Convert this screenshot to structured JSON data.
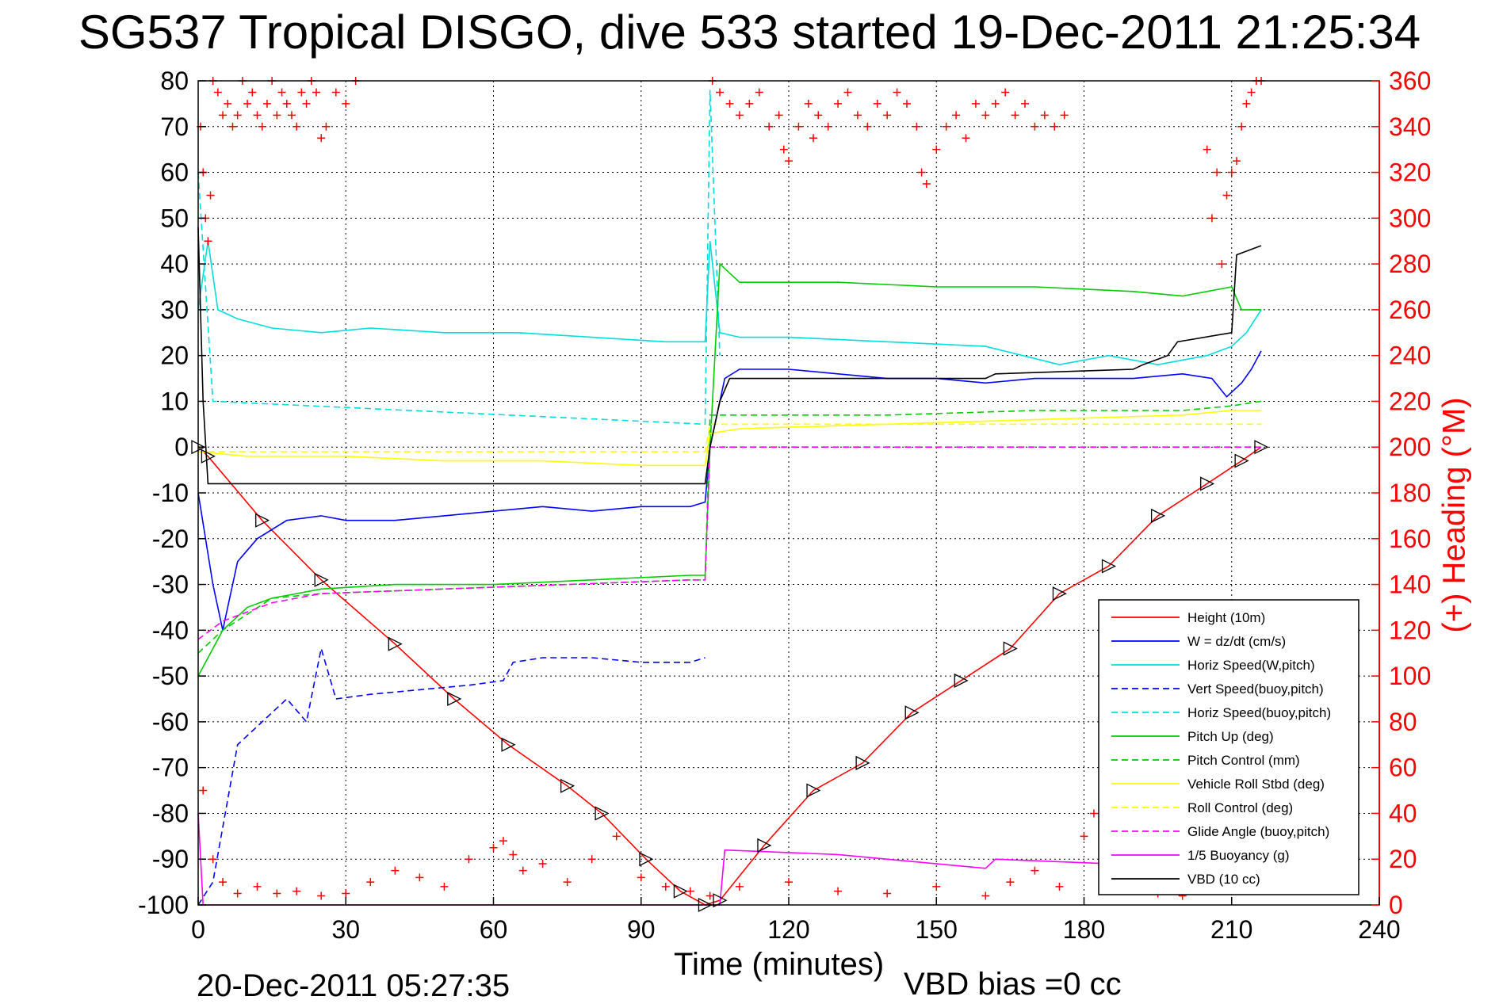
{
  "chart_data": {
    "type": "line",
    "title": "SG537 Tropical DISGO, dive 533 started 19-Dec-2011 21:25:34",
    "xlabel": "Time (minutes)",
    "ylabel": "",
    "y2label": "(+) Heading (°M)",
    "xlim": [
      0,
      240
    ],
    "ylim": [
      -100,
      80
    ],
    "y2lim": [
      0,
      360
    ],
    "xticks": [
      0,
      30,
      60,
      90,
      120,
      150,
      180,
      210,
      240
    ],
    "yticks": [
      -100,
      -90,
      -80,
      -70,
      -60,
      -50,
      -40,
      -30,
      -20,
      -10,
      0,
      10,
      20,
      30,
      40,
      50,
      60,
      70,
      80
    ],
    "y2ticks": [
      0,
      20,
      40,
      60,
      80,
      100,
      120,
      140,
      160,
      180,
      200,
      220,
      240,
      260,
      280,
      300,
      320,
      340,
      360
    ],
    "grid": true,
    "legend_position": "lower-right",
    "series": [
      {
        "name": "Height (10m)",
        "color": "#ff0000",
        "style": "solid",
        "x": [
          0,
          2,
          13,
          25,
          40,
          52,
          63,
          75,
          82,
          91,
          98,
          103,
          106,
          115,
          125,
          135,
          145,
          155,
          165,
          175,
          185,
          195,
          205,
          212,
          216
        ],
        "y": [
          0,
          -2,
          -16,
          -29,
          -43,
          -55,
          -65,
          -74,
          -80,
          -90,
          -97,
          -100,
          -99,
          -87,
          -75,
          -69,
          -58,
          -51,
          -44,
          -32,
          -26,
          -15,
          -8,
          -3,
          0
        ]
      },
      {
        "name": "W = dz/dt (cm/s)",
        "color": "#0000ff",
        "style": "solid",
        "x": [
          0,
          3,
          5,
          8,
          12,
          18,
          25,
          30,
          40,
          50,
          60,
          70,
          80,
          90,
          100,
          103,
          104,
          107,
          110,
          120,
          130,
          140,
          150,
          160,
          170,
          180,
          190,
          200,
          206,
          209,
          212,
          214,
          216
        ],
        "y": [
          -10,
          -30,
          -40,
          -25,
          -20,
          -16,
          -15,
          -16,
          -16,
          -15,
          -14,
          -13,
          -14,
          -13,
          -13,
          -12,
          0,
          15,
          17,
          17,
          16,
          15,
          15,
          14,
          15,
          15,
          15,
          16,
          15,
          11,
          14,
          17,
          21
        ]
      },
      {
        "name": "Horiz Speed(W,pitch)",
        "color": "#00dddd",
        "style": "solid",
        "x": [
          0,
          2,
          4,
          8,
          15,
          25,
          35,
          50,
          65,
          80,
          95,
          103,
          104,
          106,
          110,
          120,
          140,
          160,
          175,
          185,
          195,
          205,
          210,
          213,
          216
        ],
        "y": [
          30,
          45,
          30,
          28,
          26,
          25,
          26,
          25,
          25,
          24,
          23,
          23,
          45,
          25,
          24,
          24,
          23,
          22,
          18,
          20,
          18,
          20,
          22,
          25,
          30
        ]
      },
      {
        "name": "Vert Speed(buoy,pitch)",
        "color": "#0000ff",
        "style": "dashed",
        "x": [
          0,
          3,
          8,
          13,
          18,
          22,
          25,
          28,
          35,
          45,
          55,
          62,
          64,
          70,
          80,
          90,
          100,
          103
        ],
        "y": [
          -100,
          -95,
          -65,
          -60,
          -55,
          -60,
          -44,
          -55,
          -54,
          -53,
          -52,
          -51,
          -47,
          -46,
          -46,
          -47,
          -47,
          -46
        ]
      },
      {
        "name": "Horiz Speed(buoy,pitch)",
        "color": "#00dddd",
        "style": "dashed",
        "x": [
          0,
          3,
          103,
          104,
          106
        ],
        "y": [
          60,
          10,
          5,
          78,
          20
        ]
      },
      {
        "name": "Pitch Up (deg)",
        "color": "#00cc00",
        "style": "solid",
        "x": [
          0,
          5,
          10,
          15,
          25,
          40,
          60,
          80,
          100,
          103,
          104,
          106,
          110,
          130,
          150,
          170,
          190,
          200,
          205,
          210,
          212,
          216
        ],
        "y": [
          -50,
          -40,
          -35,
          -33,
          -31,
          -30,
          -30,
          -29,
          -28,
          -28,
          0,
          40,
          36,
          36,
          35,
          35,
          34,
          33,
          34,
          35,
          30,
          30
        ]
      },
      {
        "name": "Pitch Control (mm)",
        "color": "#00cc00",
        "style": "dashed",
        "x": [
          0,
          5,
          15,
          25,
          50,
          75,
          100,
          103,
          104,
          110,
          140,
          170,
          200,
          210,
          216
        ],
        "y": [
          -45,
          -40,
          -33,
          -32,
          -31,
          -30,
          -29,
          -29,
          7,
          7,
          7,
          8,
          8,
          9,
          10
        ]
      },
      {
        "name": "Vehicle Roll Stbd (deg)",
        "color": "#ffff00",
        "style": "solid",
        "x": [
          0,
          10,
          30,
          50,
          70,
          90,
          103,
          104,
          110,
          140,
          170,
          200,
          210,
          216
        ],
        "y": [
          -1,
          -2,
          -2,
          -3,
          -3,
          -4,
          -4,
          3,
          4,
          5,
          6,
          7,
          8,
          8
        ]
      },
      {
        "name": "Roll Control (deg)",
        "color": "#ffff00",
        "style": "dashed",
        "x": [
          0,
          103,
          104,
          216
        ],
        "y": [
          -1,
          -1,
          5,
          5
        ]
      },
      {
        "name": "Glide Angle (buoy,pitch)",
        "color": "#ff00ff",
        "style": "dashed",
        "x": [
          0,
          5,
          15,
          25,
          50,
          75,
          100,
          103,
          104,
          216
        ],
        "y": [
          -42,
          -38,
          -34,
          -32,
          -31,
          -30,
          -29,
          -29,
          0,
          0
        ]
      },
      {
        "name": "1/5 Buoyancy (g)",
        "color": "#ff00ff",
        "style": "solid",
        "x": [
          0,
          1,
          106,
          107,
          130,
          160,
          162,
          185,
          200,
          205
        ],
        "y": [
          -80,
          -100,
          -100,
          -88,
          -89,
          -92,
          -90,
          -91,
          -92,
          -95
        ]
      },
      {
        "name": "VBD (10 cc)",
        "color": "#000000",
        "style": "solid",
        "x": [
          0,
          1,
          2,
          103,
          104,
          106,
          108,
          160,
          162,
          190,
          192,
          197,
          199,
          210,
          211,
          216
        ],
        "y": [
          48,
          10,
          -8,
          -8,
          0,
          10,
          15,
          15,
          16,
          17,
          18,
          20,
          23,
          25,
          42,
          44
        ]
      }
    ],
    "heading_points": {
      "name": "(+) Heading",
      "color": "#ff0000",
      "axis": "right",
      "x": [
        0.5,
        1,
        1.5,
        2,
        2.5,
        3,
        4,
        5,
        6,
        7,
        8,
        9,
        10,
        11,
        12,
        13,
        14,
        15,
        16,
        17,
        18,
        19,
        20,
        21,
        22,
        23,
        24,
        25,
        26,
        28,
        30,
        32,
        104.5,
        106,
        108,
        110,
        112,
        114,
        116,
        118,
        119,
        120,
        122,
        124,
        125,
        126,
        128,
        130,
        132,
        134,
        136,
        138,
        140,
        142,
        144,
        146,
        147,
        148,
        150,
        152,
        154,
        156,
        158,
        160,
        162,
        164,
        166,
        168,
        170,
        172,
        174,
        176,
        205,
        206,
        207,
        208,
        209,
        210,
        211,
        212,
        213,
        214,
        215,
        216,
        1,
        3,
        5,
        8,
        12,
        16,
        20,
        25,
        30,
        35,
        40,
        45,
        50,
        55,
        60,
        62,
        64,
        66,
        70,
        75,
        80,
        85,
        90,
        95,
        100,
        104,
        110,
        120,
        130,
        140,
        150,
        160,
        165,
        170,
        175,
        180,
        182,
        184,
        186,
        190,
        195,
        200
      ],
      "y": [
        340,
        320,
        300,
        290,
        310,
        360,
        355,
        345,
        350,
        340,
        345,
        360,
        350,
        355,
        345,
        340,
        350,
        360,
        345,
        355,
        350,
        345,
        340,
        355,
        350,
        360,
        355,
        335,
        340,
        355,
        350,
        360,
        360,
        355,
        350,
        345,
        350,
        355,
        340,
        345,
        330,
        325,
        340,
        350,
        335,
        345,
        340,
        350,
        355,
        345,
        340,
        350,
        345,
        355,
        350,
        340,
        320,
        315,
        330,
        340,
        345,
        335,
        350,
        345,
        350,
        355,
        345,
        350,
        340,
        345,
        340,
        345,
        330,
        300,
        320,
        280,
        310,
        320,
        325,
        340,
        350,
        355,
        360,
        360,
        50,
        20,
        10,
        5,
        8,
        5,
        6,
        4,
        5,
        10,
        15,
        12,
        8,
        20,
        25,
        28,
        22,
        15,
        18,
        10,
        20,
        30,
        12,
        8,
        6,
        4,
        8,
        10,
        6,
        5,
        8,
        4,
        10,
        15,
        8,
        30,
        40,
        35,
        20,
        10,
        5,
        4
      ]
    },
    "bottom_left_label": "20-Dec-2011 05:27:35",
    "bottom_annotation": "VBD bias =0 cc"
  }
}
